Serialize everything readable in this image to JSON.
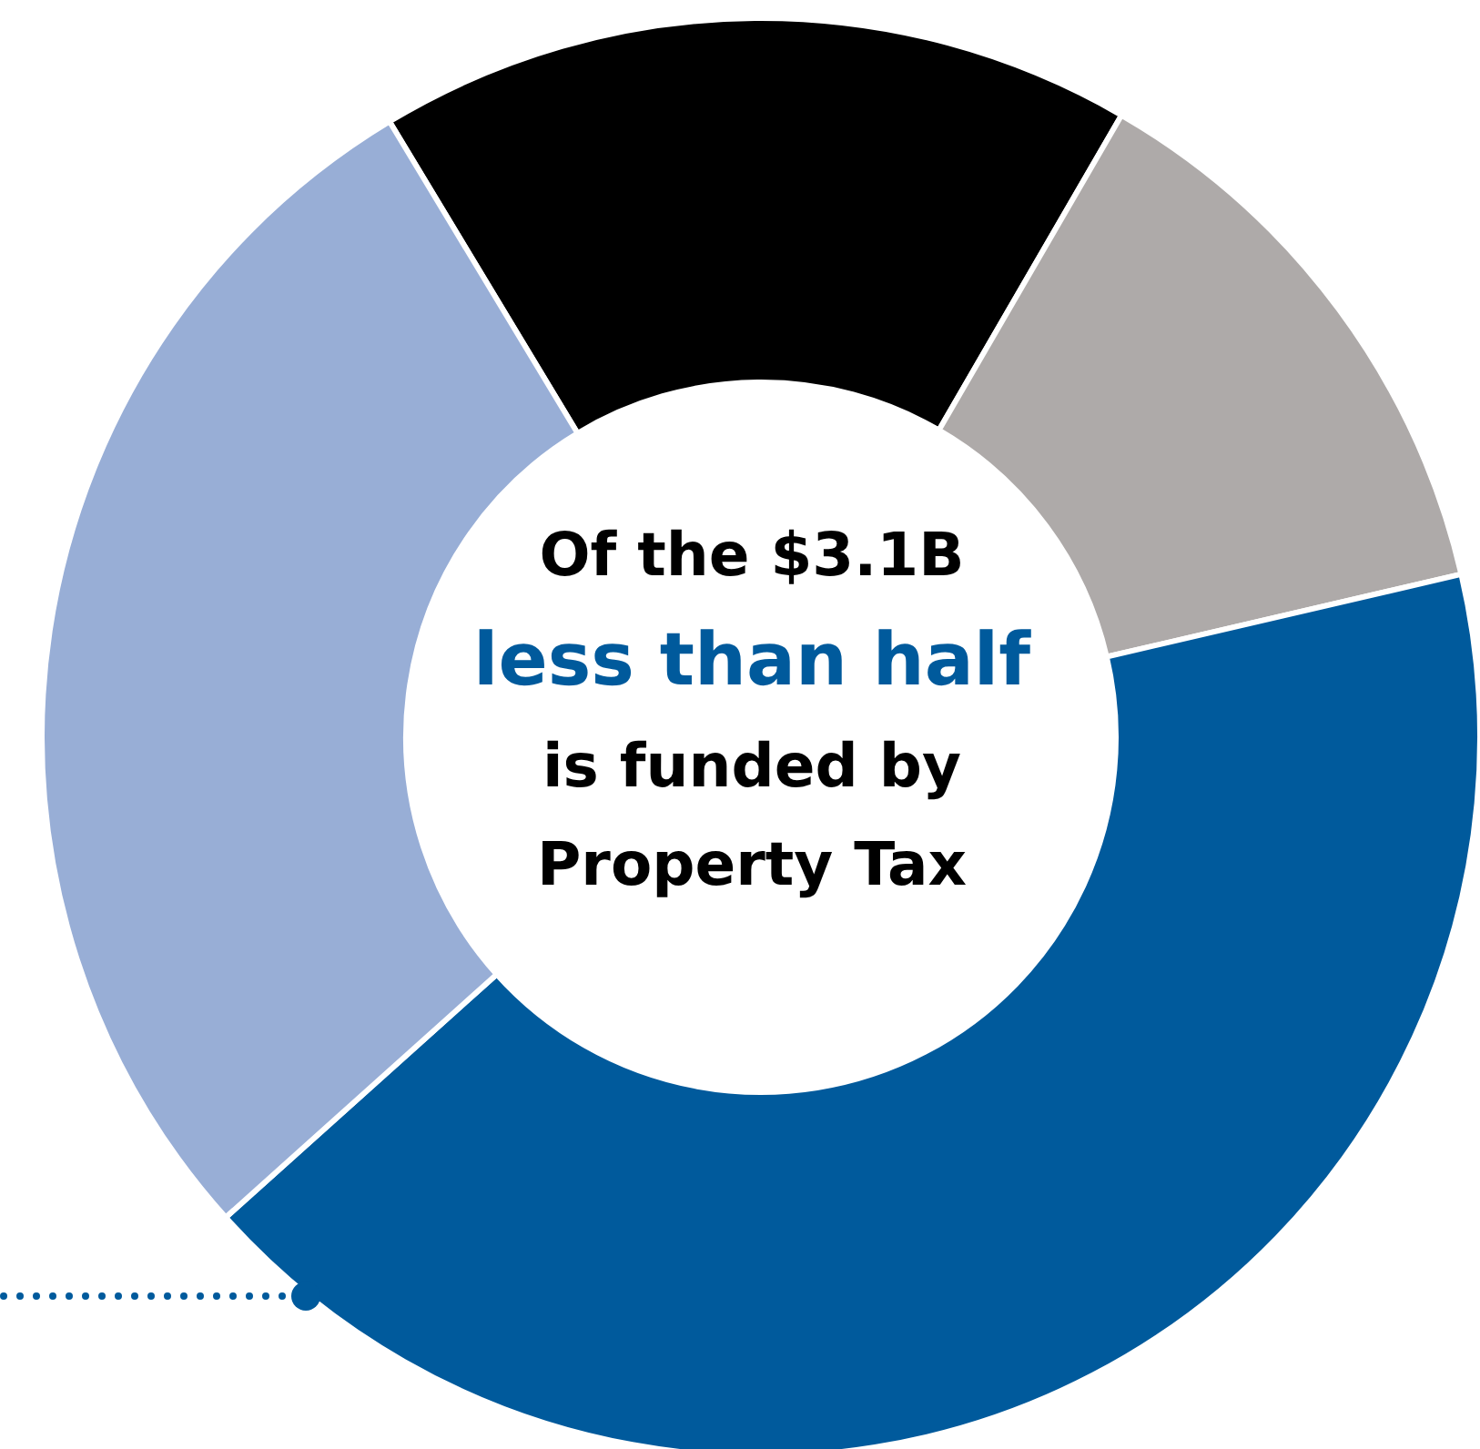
{
  "chart_data": {
    "type": "donut",
    "categories": [
      null,
      null,
      null,
      null
    ],
    "values": [
      17,
      13,
      42,
      28
    ],
    "colors": [
      "#000000",
      "#aeaaa9",
      "#005a9c",
      "#98aed6"
    ],
    "annotations": [
      "Of the $3.1B",
      "less than half",
      "is funded by",
      "Property Tax"
    ]
  }
}
